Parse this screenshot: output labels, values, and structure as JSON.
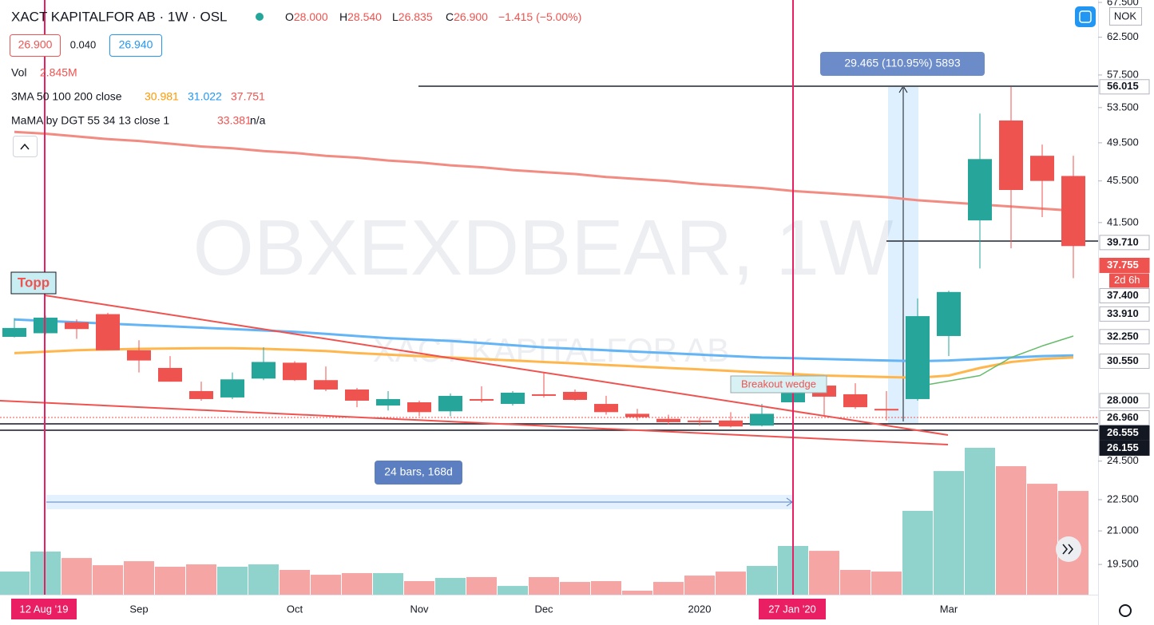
{
  "header": {
    "symbol": "XACT KAPITALFOR AB · 1W · OSL",
    "ohlc": [
      [
        "O",
        "28.000"
      ],
      [
        "H",
        "28.540"
      ],
      [
        "L",
        "26.835"
      ],
      [
        "C",
        "26.900"
      ],
      [
        "",
        "−1.415 (−5.00%)"
      ]
    ],
    "bid": "26.900",
    "spread": "0.040",
    "ask": "26.940",
    "vol_label": "Vol",
    "vol_value": "2.845M",
    "ma_label": "3MA 50 100 200 close",
    "ma_values": [
      "30.981",
      "31.022",
      "37.751"
    ],
    "mama_label": "MaMA by DGT 55 34 13 close 1",
    "mama_values": [
      "33.381",
      "n/a"
    ],
    "currency": "NOK"
  },
  "chart_data": {
    "type": "candlestick",
    "watermark": "OBXEXDBEAR, 1W",
    "watermark_sub": "XACT KAPITALFOR AB",
    "annotations": [
      "Topp",
      "Breakout wedge",
      "24 bars, 168d",
      "29.465 (110.95%) 5893"
    ],
    "categories": [
      null,
      "12 Aug '19",
      null,
      null,
      "Sep",
      null,
      null,
      null,
      null,
      "Oct",
      null,
      null,
      null,
      "Nov",
      null,
      null,
      null,
      "Dec",
      null,
      null,
      null,
      null,
      "2020",
      null,
      null,
      "27 Jan '20",
      null,
      null,
      null,
      null,
      "Mar",
      null,
      null,
      null,
      null
    ],
    "open": [
      32.24,
      32.5,
      33.3,
      33.9,
      31.3,
      30.1,
      28.6,
      28.2,
      29.4,
      30.45,
      29.3,
      28.7,
      27.7,
      27.9,
      27.35,
      28.1,
      27.8,
      28.4,
      28.55,
      27.8,
      27.2,
      26.9,
      26.8,
      26.8,
      26.5,
      27.9,
      28.95,
      28.4,
      27.5,
      28.1,
      32.3,
      41.7,
      52.0,
      48.1,
      46.0
    ],
    "high": [
      33.6,
      33.8,
      33.5,
      34.0,
      32.0,
      30.9,
      29.2,
      29.8,
      31.5,
      30.55,
      30.2,
      28.8,
      28.6,
      28.0,
      28.45,
      28.9,
      28.6,
      29.8,
      28.7,
      28.3,
      27.5,
      27.15,
      26.95,
      27.3,
      27.8,
      29.1,
      29.3,
      29.1,
      28.6,
      35.1,
      35.7,
      52.8,
      56.0,
      49.3,
      48.1
    ],
    "low": [
      32.2,
      32.4,
      32.1,
      31.3,
      29.8,
      29.2,
      28.0,
      28.1,
      29.3,
      29.25,
      28.6,
      27.6,
      27.4,
      27.05,
      27.05,
      27.9,
      27.7,
      28.2,
      28.0,
      27.15,
      26.8,
      26.55,
      26.5,
      26.4,
      26.45,
      27.25,
      27.1,
      27.5,
      26.8,
      28.0,
      30.9,
      37.5,
      39.2,
      42.0,
      36.7
    ],
    "close": [
      32.88,
      33.64,
      32.8,
      31.3,
      30.6,
      29.2,
      28.1,
      29.35,
      30.5,
      29.3,
      28.7,
      28.0,
      28.1,
      27.3,
      28.3,
      28.0,
      28.5,
      28.3,
      28.05,
      27.3,
      27.0,
      26.7,
      26.7,
      26.45,
      27.2,
      28.85,
      28.25,
      27.6,
      27.4,
      33.75,
      35.6,
      47.75,
      44.6,
      45.5,
      39.4
    ],
    "volume": [
      1.96,
      3.66,
      3.11,
      2.5,
      2.84,
      2.37,
      2.57,
      2.37,
      2.57,
      2.1,
      1.69,
      1.83,
      1.83,
      1.15,
      1.42,
      1.49,
      0.74,
      1.49,
      1.08,
      1.15,
      0.34,
      1.08,
      1.62,
      1.96,
      2.44,
      4.13,
      3.72,
      2.1,
      1.96,
      7.11,
      10.49,
      12.46,
      10.9,
      9.41,
      8.8
    ],
    "colors": {
      "up": "#26a69a",
      "down": "#ef5350",
      "volume_up": "#8fd3cc",
      "volume_down": "#f5a6a4"
    },
    "overlays": [
      {
        "color": "#f28b82",
        "width": 3,
        "values": [
          50.7,
          50.5,
          50.2,
          49.9,
          49.7,
          49.4,
          49.1,
          48.9,
          48.6,
          48.4,
          48.1,
          47.9,
          47.6,
          47.4,
          47.1,
          46.9,
          46.6,
          46.4,
          46.2,
          45.9,
          45.7,
          45.5,
          45.2,
          45.0,
          44.8,
          44.5,
          44.3,
          44.1,
          43.9,
          43.6,
          43.4,
          43.2,
          43.0,
          42.8,
          42.6
        ]
      },
      {
        "color": "#64b5f6",
        "width": 3,
        "values": [
          33.5,
          33.4,
          33.3,
          33.2,
          33.1,
          33.0,
          32.9,
          32.8,
          32.7,
          32.6,
          32.45,
          32.3,
          32.15,
          32.05,
          31.95,
          31.8,
          31.65,
          31.5,
          31.4,
          31.3,
          31.2,
          31.1,
          31.0,
          30.9,
          30.8,
          30.75,
          30.7,
          30.65,
          30.6,
          30.55,
          30.6,
          30.7,
          30.8,
          30.9,
          30.95
        ]
      },
      {
        "color": "#ffb74d",
        "width": 3,
        "values": [
          31.1,
          31.2,
          31.3,
          31.35,
          31.4,
          31.42,
          31.44,
          31.44,
          31.4,
          31.33,
          31.25,
          31.1,
          31.0,
          30.9,
          30.8,
          30.7,
          30.6,
          30.5,
          30.4,
          30.3,
          30.2,
          30.1,
          30.0,
          29.9,
          29.8,
          29.7,
          29.6,
          29.55,
          29.5,
          29.45,
          29.6,
          30.1,
          30.5,
          30.7,
          30.8
        ]
      },
      {
        "color": "#66bb6a",
        "width": 1.5,
        "values": [
          null,
          null,
          null,
          null,
          null,
          null,
          null,
          null,
          null,
          null,
          null,
          null,
          null,
          null,
          null,
          null,
          null,
          null,
          null,
          null,
          null,
          null,
          null,
          null,
          null,
          null,
          null,
          null,
          null,
          28.9,
          29.24,
          29.6,
          30.8,
          31.6,
          32.3
        ]
      }
    ],
    "log_scale": true,
    "ylim": [
      18.24,
      67.86
    ],
    "yticks": [
      {
        "value": 67.5,
        "label": "67.500"
      },
      {
        "value": 62.5,
        "label": "62.500"
      },
      {
        "value": 57.5,
        "label": "57.500"
      },
      {
        "value": 53.5,
        "label": "53.500"
      },
      {
        "value": 49.5,
        "label": "49.500"
      },
      {
        "value": 45.5,
        "label": "45.500"
      },
      {
        "value": 41.5,
        "label": "41.500"
      },
      {
        "value": 24.5,
        "label": "24.500"
      },
      {
        "value": 22.5,
        "label": "22.500"
      },
      {
        "value": 21,
        "label": "21.000"
      },
      {
        "value": 19.5,
        "label": "19.500"
      }
    ],
    "price_labels": [
      {
        "value": 56.015,
        "label": "56.015",
        "bg": "#ffffff",
        "fg": "#131722"
      },
      {
        "value": 39.71,
        "label": "39.710",
        "bg": "#ffffff",
        "fg": "#131722"
      },
      {
        "value": 37.755,
        "label": "37.755",
        "bg": "#ef5350",
        "fg": "#ffffff",
        "countdown": "2d 6h"
      },
      {
        "value": 37.4,
        "label": "37.400",
        "bg": "#ffffff",
        "fg": "#131722"
      },
      {
        "value": 33.91,
        "label": "33.910",
        "bg": "#ffffff",
        "fg": "#131722"
      },
      {
        "value": 32.25,
        "label": "32.250",
        "bg": "#ffffff",
        "fg": "#131722"
      },
      {
        "value": 30.55,
        "label": "30.550",
        "bg": "#ffffff",
        "fg": "#131722"
      },
      {
        "value": 28,
        "label": "28.000",
        "bg": "#ffffff",
        "fg": "#131722"
      },
      {
        "value": 26.96,
        "label": "26.960",
        "bg": "#ffffff",
        "fg": "#131722"
      },
      {
        "value": 26.555,
        "label": "26.555",
        "bg": "#131722",
        "fg": "#ffffff"
      },
      {
        "value": 26.155,
        "label": "26.155",
        "bg": "#131722",
        "fg": "#ffffff"
      }
    ]
  }
}
